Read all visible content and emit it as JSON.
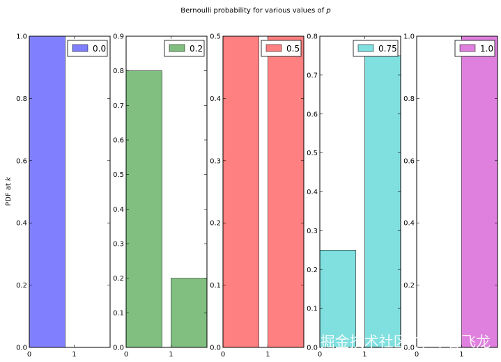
{
  "figure": {
    "title": "Bernoulli probability for various values of",
    "title_symbol": "p",
    "ylabel": "PDF at",
    "ylabel_symbol": "k",
    "watermark": "掘金技术社区 @ 布客飞龙"
  },
  "chart_data": [
    {
      "type": "bar",
      "legend": "0.0",
      "color": "#8080ff",
      "categories": [
        0,
        1
      ],
      "values": [
        1.0,
        0.0
      ],
      "xlim": [
        0,
        1.8
      ],
      "ylim": [
        0,
        1.0
      ],
      "yticks": [
        0.0,
        0.2,
        0.4,
        0.6,
        0.8,
        1.0
      ],
      "ytick_labels": [
        "0.0",
        "0.2",
        "0.4",
        "0.6",
        "0.8",
        "1.0"
      ],
      "xticks": [
        0,
        1
      ],
      "xtick_labels": [
        "0",
        "1"
      ]
    },
    {
      "type": "bar",
      "legend": "0.2",
      "color": "#80bf80",
      "categories": [
        0,
        1
      ],
      "values": [
        0.8,
        0.2
      ],
      "xlim": [
        0,
        1.8
      ],
      "ylim": [
        0,
        0.9
      ],
      "yticks": [
        0.0,
        0.1,
        0.2,
        0.3,
        0.4,
        0.5,
        0.6,
        0.7,
        0.8,
        0.9
      ],
      "ytick_labels": [
        "0.0",
        "0.1",
        "0.2",
        "0.3",
        "0.4",
        "0.5",
        "0.6",
        "0.7",
        "0.8",
        "0.9"
      ],
      "xticks": [
        0,
        1
      ],
      "xtick_labels": [
        "0",
        "1"
      ]
    },
    {
      "type": "bar",
      "legend": "0.5",
      "color": "#ff8080",
      "categories": [
        0,
        1
      ],
      "values": [
        0.5,
        0.5
      ],
      "xlim": [
        0,
        1.8
      ],
      "ylim": [
        0,
        0.5
      ],
      "yticks": [
        0.0,
        0.1,
        0.2,
        0.3,
        0.4,
        0.5
      ],
      "ytick_labels": [
        "0.0",
        "0.1",
        "0.2",
        "0.3",
        "0.4",
        "0.5"
      ],
      "xticks": [
        0,
        1
      ],
      "xtick_labels": [
        "0",
        "1"
      ]
    },
    {
      "type": "bar",
      "legend": "0.75",
      "color": "#80dfdf",
      "categories": [
        0,
        1
      ],
      "values": [
        0.25,
        0.75
      ],
      "xlim": [
        0,
        1.8
      ],
      "ylim": [
        0,
        0.8
      ],
      "yticks": [
        0.0,
        0.1,
        0.2,
        0.3,
        0.4,
        0.5,
        0.6,
        0.7,
        0.8
      ],
      "ytick_labels": [
        "0.0",
        "0.1",
        "0.2",
        "0.3",
        "0.4",
        "0.5",
        "0.6",
        "0.7",
        "0.8"
      ],
      "xticks": [
        0,
        1
      ],
      "xtick_labels": [
        "0",
        "1"
      ]
    },
    {
      "type": "bar",
      "legend": "1.0",
      "color": "#df80df",
      "categories": [
        0,
        1
      ],
      "values": [
        0.0,
        1.0
      ],
      "xlim": [
        0,
        1.8
      ],
      "ylim": [
        0,
        1.0
      ],
      "yticks": [
        0.0,
        0.2,
        0.4,
        0.6,
        0.8,
        1.0
      ],
      "ytick_labels": [
        "0.0",
        "0.2",
        "0.4",
        "0.6",
        "0.8",
        "1.0"
      ],
      "xticks": [
        0,
        1
      ],
      "xtick_labels": [
        "0",
        "1"
      ]
    }
  ]
}
